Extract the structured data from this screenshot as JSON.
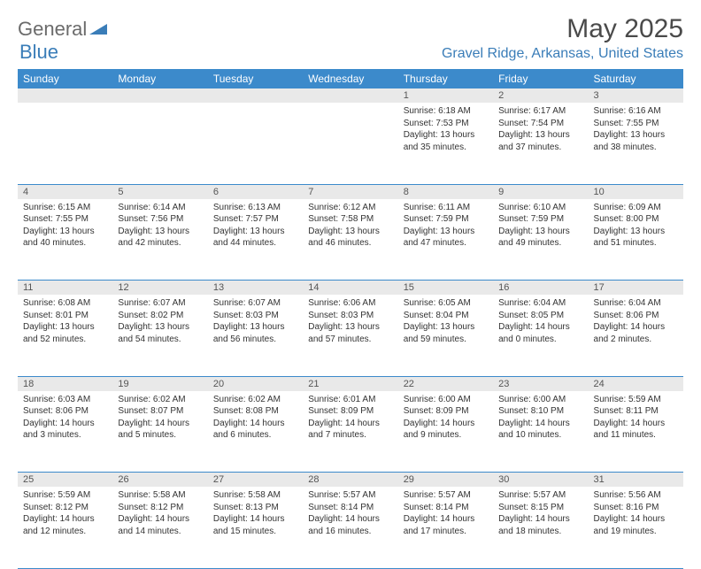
{
  "logo": {
    "text1": "General",
    "text2": "Blue"
  },
  "title": "May 2025",
  "location": "Gravel Ridge, Arkansas, United States",
  "header_bg": "#3c8acb",
  "daynum_bg": "#e9e9e9",
  "divider_color": "#3c8acb",
  "weekdays": [
    "Sunday",
    "Monday",
    "Tuesday",
    "Wednesday",
    "Thursday",
    "Friday",
    "Saturday"
  ],
  "weeks": [
    [
      null,
      null,
      null,
      null,
      {
        "n": "1",
        "sunrise": "6:18 AM",
        "sunset": "7:53 PM",
        "daylight": "13 hours and 35 minutes."
      },
      {
        "n": "2",
        "sunrise": "6:17 AM",
        "sunset": "7:54 PM",
        "daylight": "13 hours and 37 minutes."
      },
      {
        "n": "3",
        "sunrise": "6:16 AM",
        "sunset": "7:55 PM",
        "daylight": "13 hours and 38 minutes."
      }
    ],
    [
      {
        "n": "4",
        "sunrise": "6:15 AM",
        "sunset": "7:55 PM",
        "daylight": "13 hours and 40 minutes."
      },
      {
        "n": "5",
        "sunrise": "6:14 AM",
        "sunset": "7:56 PM",
        "daylight": "13 hours and 42 minutes."
      },
      {
        "n": "6",
        "sunrise": "6:13 AM",
        "sunset": "7:57 PM",
        "daylight": "13 hours and 44 minutes."
      },
      {
        "n": "7",
        "sunrise": "6:12 AM",
        "sunset": "7:58 PM",
        "daylight": "13 hours and 46 minutes."
      },
      {
        "n": "8",
        "sunrise": "6:11 AM",
        "sunset": "7:59 PM",
        "daylight": "13 hours and 47 minutes."
      },
      {
        "n": "9",
        "sunrise": "6:10 AM",
        "sunset": "7:59 PM",
        "daylight": "13 hours and 49 minutes."
      },
      {
        "n": "10",
        "sunrise": "6:09 AM",
        "sunset": "8:00 PM",
        "daylight": "13 hours and 51 minutes."
      }
    ],
    [
      {
        "n": "11",
        "sunrise": "6:08 AM",
        "sunset": "8:01 PM",
        "daylight": "13 hours and 52 minutes."
      },
      {
        "n": "12",
        "sunrise": "6:07 AM",
        "sunset": "8:02 PM",
        "daylight": "13 hours and 54 minutes."
      },
      {
        "n": "13",
        "sunrise": "6:07 AM",
        "sunset": "8:03 PM",
        "daylight": "13 hours and 56 minutes."
      },
      {
        "n": "14",
        "sunrise": "6:06 AM",
        "sunset": "8:03 PM",
        "daylight": "13 hours and 57 minutes."
      },
      {
        "n": "15",
        "sunrise": "6:05 AM",
        "sunset": "8:04 PM",
        "daylight": "13 hours and 59 minutes."
      },
      {
        "n": "16",
        "sunrise": "6:04 AM",
        "sunset": "8:05 PM",
        "daylight": "14 hours and 0 minutes."
      },
      {
        "n": "17",
        "sunrise": "6:04 AM",
        "sunset": "8:06 PM",
        "daylight": "14 hours and 2 minutes."
      }
    ],
    [
      {
        "n": "18",
        "sunrise": "6:03 AM",
        "sunset": "8:06 PM",
        "daylight": "14 hours and 3 minutes."
      },
      {
        "n": "19",
        "sunrise": "6:02 AM",
        "sunset": "8:07 PM",
        "daylight": "14 hours and 5 minutes."
      },
      {
        "n": "20",
        "sunrise": "6:02 AM",
        "sunset": "8:08 PM",
        "daylight": "14 hours and 6 minutes."
      },
      {
        "n": "21",
        "sunrise": "6:01 AM",
        "sunset": "8:09 PM",
        "daylight": "14 hours and 7 minutes."
      },
      {
        "n": "22",
        "sunrise": "6:00 AM",
        "sunset": "8:09 PM",
        "daylight": "14 hours and 9 minutes."
      },
      {
        "n": "23",
        "sunrise": "6:00 AM",
        "sunset": "8:10 PM",
        "daylight": "14 hours and 10 minutes."
      },
      {
        "n": "24",
        "sunrise": "5:59 AM",
        "sunset": "8:11 PM",
        "daylight": "14 hours and 11 minutes."
      }
    ],
    [
      {
        "n": "25",
        "sunrise": "5:59 AM",
        "sunset": "8:12 PM",
        "daylight": "14 hours and 12 minutes."
      },
      {
        "n": "26",
        "sunrise": "5:58 AM",
        "sunset": "8:12 PM",
        "daylight": "14 hours and 14 minutes."
      },
      {
        "n": "27",
        "sunrise": "5:58 AM",
        "sunset": "8:13 PM",
        "daylight": "14 hours and 15 minutes."
      },
      {
        "n": "28",
        "sunrise": "5:57 AM",
        "sunset": "8:14 PM",
        "daylight": "14 hours and 16 minutes."
      },
      {
        "n": "29",
        "sunrise": "5:57 AM",
        "sunset": "8:14 PM",
        "daylight": "14 hours and 17 minutes."
      },
      {
        "n": "30",
        "sunrise": "5:57 AM",
        "sunset": "8:15 PM",
        "daylight": "14 hours and 18 minutes."
      },
      {
        "n": "31",
        "sunrise": "5:56 AM",
        "sunset": "8:16 PM",
        "daylight": "14 hours and 19 minutes."
      }
    ]
  ]
}
